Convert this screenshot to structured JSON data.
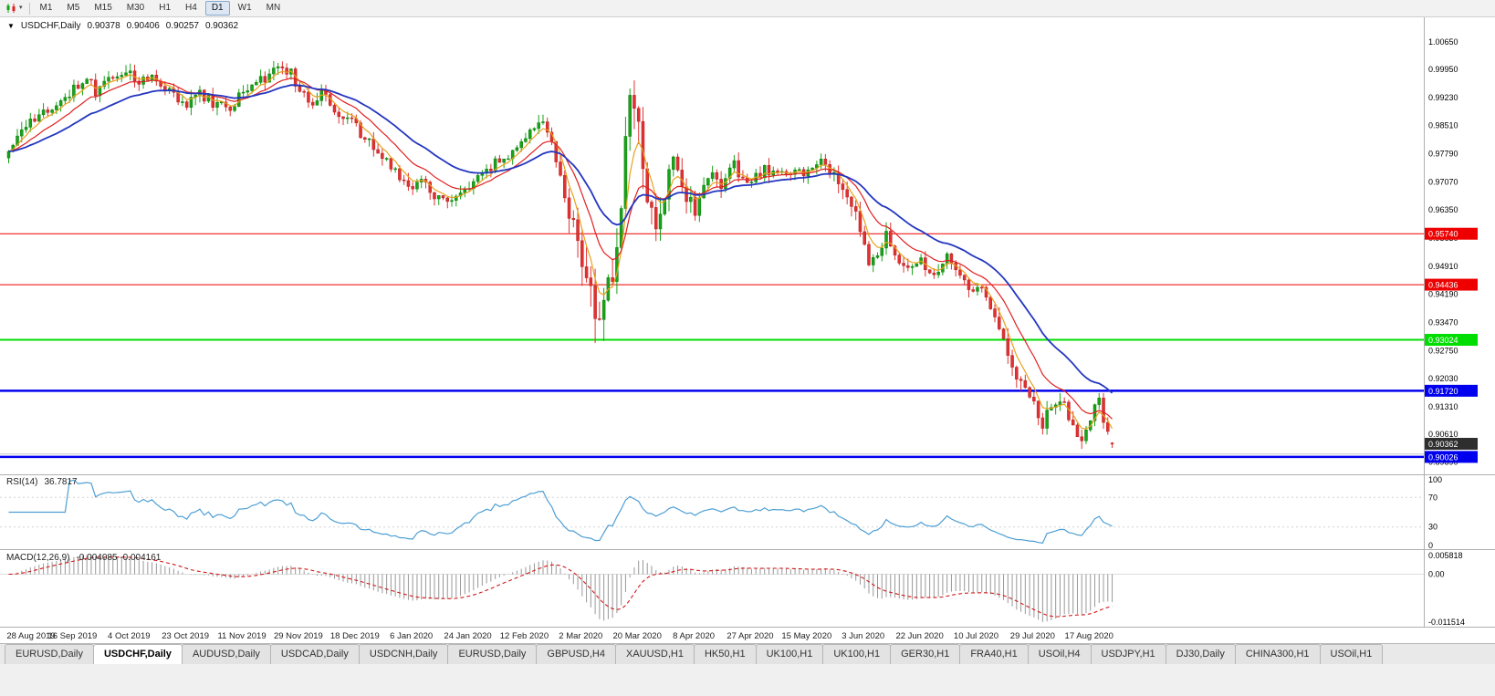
{
  "toolbar": {
    "timeframes": [
      "M1",
      "M5",
      "M15",
      "M30",
      "H1",
      "H4",
      "D1",
      "W1",
      "MN"
    ],
    "active": "D1",
    "chart_icon": "candlestick-chart-icon"
  },
  "chart_data": {
    "type": "candlestick",
    "symbol_period": "USDCHF,Daily",
    "ohlc": {
      "open": "0.90378",
      "high": "0.90406",
      "low": "0.90257",
      "close": "0.90362"
    },
    "x_labels": [
      "28 Aug 2019",
      "16 Sep 2019",
      "4 Oct 2019",
      "23 Oct 2019",
      "11 Nov 2019",
      "29 Nov 2019",
      "18 Dec 2019",
      "6 Jan 2020",
      "24 Jan 2020",
      "12 Feb 2020",
      "2 Mar 2020",
      "20 Mar 2020",
      "8 Apr 2020",
      "27 Apr 2020",
      "15 May 2020",
      "3 Jun 2020",
      "22 Jun 2020",
      "10 Jul 2020",
      "29 Jul 2020",
      "17 Aug 2020"
    ],
    "x_label_first_bar": 2,
    "x_label_step_bars": 13,
    "y_axis_labels": [
      "1.00650",
      "0.99950",
      "0.99230",
      "0.98510",
      "0.97790",
      "0.97070",
      "0.96350",
      "0.95630",
      "0.94910",
      "0.94190",
      "0.93470",
      "0.92750",
      "0.92030",
      "0.91310",
      "0.90610",
      "0.89890"
    ],
    "price_range": {
      "min": 0.8958,
      "max": 1.0128
    },
    "bars_drawn": 255,
    "close_anchors": [
      [
        0,
        0.9775
      ],
      [
        3,
        0.984
      ],
      [
        6,
        0.9862
      ],
      [
        9,
        0.9886
      ],
      [
        13,
        0.9926
      ],
      [
        16,
        0.9952
      ],
      [
        18,
        0.9976
      ],
      [
        20,
        0.9936
      ],
      [
        23,
        0.9962
      ],
      [
        26,
        0.998
      ],
      [
        28,
        0.9992
      ],
      [
        30,
        0.9958
      ],
      [
        33,
        0.9984
      ],
      [
        36,
        0.994
      ],
      [
        39,
        0.9916
      ],
      [
        41,
        0.9902
      ],
      [
        44,
        0.993
      ],
      [
        47,
        0.991
      ],
      [
        50,
        0.9892
      ],
      [
        54,
        0.9936
      ],
      [
        58,
        0.9964
      ],
      [
        61,
        0.9986
      ],
      [
        63,
        1.0
      ],
      [
        65,
        0.9984
      ],
      [
        67,
        0.9946
      ],
      [
        69,
        0.9906
      ],
      [
        72,
        0.993
      ],
      [
        75,
        0.9892
      ],
      [
        78,
        0.9866
      ],
      [
        80,
        0.985
      ],
      [
        82,
        0.9816
      ],
      [
        85,
        0.978
      ],
      [
        88,
        0.9742
      ],
      [
        91,
        0.9706
      ],
      [
        93,
        0.9686
      ],
      [
        95,
        0.9716
      ],
      [
        98,
        0.9676
      ],
      [
        101,
        0.9656
      ],
      [
        104,
        0.9672
      ],
      [
        106,
        0.9696
      ],
      [
        109,
        0.9726
      ],
      [
        112,
        0.9756
      ],
      [
        115,
        0.9776
      ],
      [
        118,
        0.9806
      ],
      [
        121,
        0.984
      ],
      [
        123,
        0.9856
      ],
      [
        125,
        0.98
      ],
      [
        127,
        0.973
      ],
      [
        129,
        0.964
      ],
      [
        131,
        0.956
      ],
      [
        133,
        0.948
      ],
      [
        135,
        0.9388
      ],
      [
        136,
        0.933
      ],
      [
        137,
        0.9392
      ],
      [
        138,
        0.9452
      ],
      [
        140,
        0.9532
      ],
      [
        141,
        0.964
      ],
      [
        142,
        0.978
      ],
      [
        143,
        0.9896
      ],
      [
        144,
        0.9878
      ],
      [
        145,
        0.9848
      ],
      [
        146,
        0.9742
      ],
      [
        147,
        0.9652
      ],
      [
        149,
        0.9582
      ],
      [
        151,
        0.9688
      ],
      [
        153,
        0.9758
      ],
      [
        155,
        0.9692
      ],
      [
        157,
        0.9652
      ],
      [
        158,
        0.964
      ],
      [
        160,
        0.97
      ],
      [
        162,
        0.9744
      ],
      [
        164,
        0.9706
      ],
      [
        166,
        0.9758
      ],
      [
        168,
        0.973
      ],
      [
        171,
        0.97
      ],
      [
        174,
        0.9744
      ],
      [
        177,
        0.9718
      ],
      [
        180,
        0.9738
      ],
      [
        184,
        0.9728
      ],
      [
        187,
        0.9752
      ],
      [
        190,
        0.9722
      ],
      [
        193,
        0.9682
      ],
      [
        195,
        0.9636
      ],
      [
        197,
        0.956
      ],
      [
        198,
        0.9496
      ],
      [
        200,
        0.953
      ],
      [
        202,
        0.9572
      ],
      [
        204,
        0.9526
      ],
      [
        207,
        0.9482
      ],
      [
        210,
        0.9502
      ],
      [
        213,
        0.947
      ],
      [
        216,
        0.9512
      ],
      [
        219,
        0.9466
      ],
      [
        221,
        0.9426
      ],
      [
        223,
        0.9446
      ],
      [
        225,
        0.94
      ],
      [
        227,
        0.9356
      ],
      [
        229,
        0.93
      ],
      [
        231,
        0.9246
      ],
      [
        233,
        0.9192
      ],
      [
        235,
        0.915
      ],
      [
        236,
        0.9128
      ],
      [
        238,
        0.9092
      ],
      [
        240,
        0.9122
      ],
      [
        242,
        0.9158
      ],
      [
        244,
        0.9108
      ],
      [
        246,
        0.9042
      ],
      [
        248,
        0.9066
      ],
      [
        250,
        0.913
      ],
      [
        251,
        0.9152
      ],
      [
        252,
        0.9098
      ],
      [
        253,
        0.906
      ],
      [
        254,
        0.9036
      ]
    ],
    "vol_anchors": [
      [
        0,
        0.004
      ],
      [
        60,
        0.0042
      ],
      [
        100,
        0.0038
      ],
      [
        120,
        0.0036
      ],
      [
        126,
        0.0055
      ],
      [
        132,
        0.0105
      ],
      [
        137,
        0.015
      ],
      [
        143,
        0.0135
      ],
      [
        147,
        0.0105
      ],
      [
        152,
        0.0075
      ],
      [
        158,
        0.0058
      ],
      [
        168,
        0.0048
      ],
      [
        180,
        0.004
      ],
      [
        194,
        0.0052
      ],
      [
        199,
        0.0058
      ],
      [
        205,
        0.0042
      ],
      [
        222,
        0.004
      ],
      [
        231,
        0.0055
      ],
      [
        237,
        0.005
      ],
      [
        247,
        0.0045
      ],
      [
        254,
        0.0034
      ]
    ],
    "last_candle": [
      0.90378,
      0.90406,
      0.90257,
      0.90362
    ],
    "moving_averages": [
      {
        "name": "fast-ma",
        "period": 5,
        "color": "#e8a21a",
        "width": 1.2
      },
      {
        "name": "mid-ma",
        "period": 13,
        "color": "#e02020",
        "width": 1.2
      },
      {
        "name": "slow-ma",
        "period": 28,
        "color": "#2336c0",
        "width": 1.8
      }
    ],
    "hlines": [
      {
        "price": 0.9574,
        "label": "0.95740",
        "color": "#ee0000",
        "width": 1
      },
      {
        "price": 0.94436,
        "label": "0.94436",
        "color": "#ee0000",
        "width": 1
      },
      {
        "price": 0.93024,
        "label": "0.93024",
        "color": "#00dd00",
        "width": 2
      },
      {
        "price": 0.9172,
        "label": "0.91720",
        "color": "#0000ee",
        "width": 2.5
      },
      {
        "price": 0.901,
        "label": "",
        "color": "#c8c8c8",
        "width": 1
      },
      {
        "price": 0.90026,
        "label": "0.90026",
        "color": "#0000ee",
        "width": 2.5
      }
    ],
    "price_tag": {
      "price": 0.90362,
      "label": "0.90362",
      "color": "#2e2e2e"
    },
    "colors": {
      "up": "#18a318",
      "up_stroke": "#0e7a0e",
      "down": "#e03232",
      "down_stroke": "#b51f1f",
      "background": "#ffffff",
      "divider": "#b0b0b0"
    },
    "indicators": {
      "rsi": {
        "label": "RSI(14)",
        "value": "36.7817",
        "period": 14,
        "axis_labels": [
          "100",
          "70",
          "30",
          "0"
        ],
        "level_lines": [
          70,
          30
        ],
        "line_color": "#4e9fd4"
      },
      "macd": {
        "label": "MACD(12,26,9)",
        "values": "-0.004085 -0.004161",
        "fast": 12,
        "slow": 26,
        "signal": 9,
        "axis_labels": [
          "0.005818",
          "0.00",
          "-0.011514"
        ],
        "hist_color": "#989898",
        "signal_color": "#d01818"
      }
    }
  },
  "tabs": {
    "items": [
      {
        "label": "EURUSD,Daily",
        "active": false
      },
      {
        "label": "USDCHF,Daily",
        "active": true
      },
      {
        "label": "AUDUSD,Daily",
        "active": false
      },
      {
        "label": "USDCAD,Daily",
        "active": false
      },
      {
        "label": "USDCNH,Daily",
        "active": false
      },
      {
        "label": "EURUSD,Daily",
        "active": false
      },
      {
        "label": "GBPUSD,H4",
        "active": false
      },
      {
        "label": "XAUUSD,H1",
        "active": false
      },
      {
        "label": "HK50,H1",
        "active": false
      },
      {
        "label": "UK100,H1",
        "active": false
      },
      {
        "label": "UK100,H1",
        "active": false
      },
      {
        "label": "GER30,H1",
        "active": false
      },
      {
        "label": "FRA40,H1",
        "active": false
      },
      {
        "label": "USOil,H4",
        "active": false
      },
      {
        "label": "USDJPY,H1",
        "active": false
      },
      {
        "label": "DJ30,Daily",
        "active": false
      },
      {
        "label": "CHINA300,H1",
        "active": false
      },
      {
        "label": "USOil,H1",
        "active": false
      }
    ]
  }
}
